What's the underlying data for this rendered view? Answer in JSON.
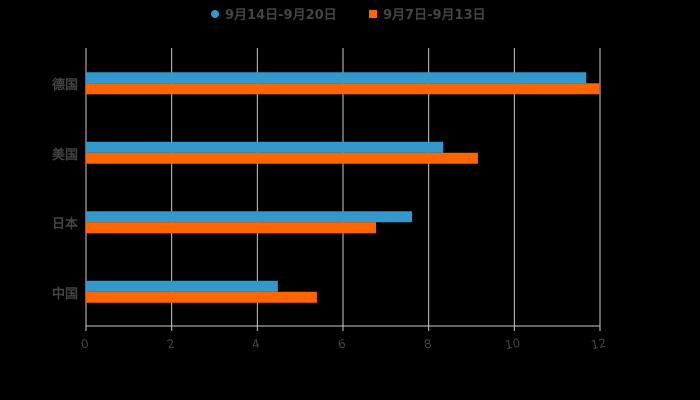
{
  "chart_data": {
    "type": "bar",
    "orientation": "horizontal",
    "title": "",
    "categories": [
      "中国",
      "日本",
      "美国",
      "德国"
    ],
    "series": [
      {
        "name": "9月14日-9月20日",
        "color": "#3399cc",
        "values": [
          4.48,
          7.61,
          8.34,
          11.68
        ]
      },
      {
        "name": "9月7日-9月13日",
        "color": "#ff6600",
        "values": [
          5.39,
          6.77,
          9.15,
          11.98
        ]
      }
    ],
    "xlabel": "",
    "ylabel": "",
    "xlim": [
      0,
      12
    ],
    "xticks": [
      "0",
      "2",
      "4",
      "6",
      "8",
      "10",
      "12"
    ],
    "grid": "vertical",
    "legend_position": "top"
  },
  "legend": {
    "items": [
      {
        "label": "9月14日-9月20日",
        "color": "#3399cc",
        "marker": "circle"
      },
      {
        "label": "9月7日-9月13日",
        "color": "#ff6600",
        "marker": "square"
      }
    ]
  },
  "colors": {
    "background": "#000000",
    "gridline": "#cccccc",
    "text": "#444444"
  }
}
